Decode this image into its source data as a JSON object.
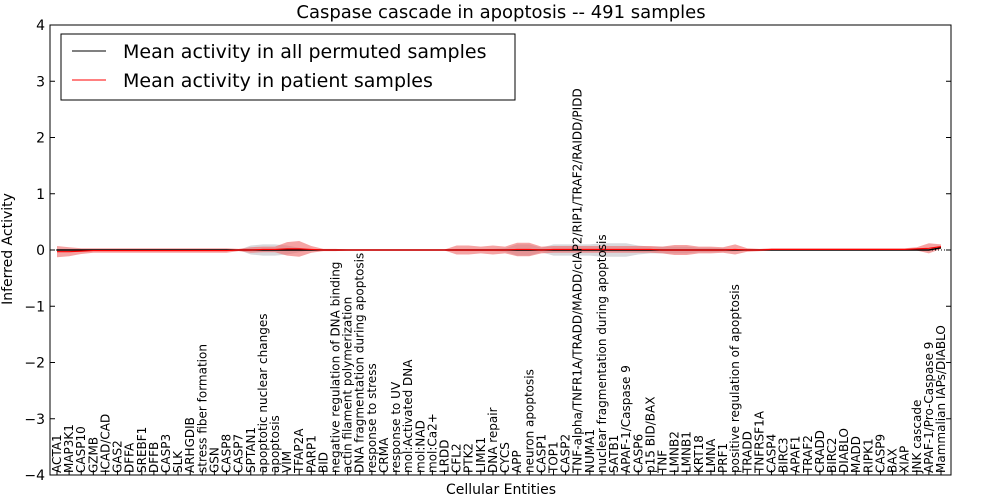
{
  "chart_data": {
    "type": "line",
    "title": "Caspase cascade in apoptosis -- 491 samples",
    "xlabel": "Cellular Entities",
    "ylabel": "Inferred Activity",
    "ylim": [
      -4,
      4
    ],
    "yticks": [
      -4,
      -3,
      -2,
      -1,
      0,
      1,
      2,
      3,
      4
    ],
    "ytick_labels": [
      "−4",
      "−3",
      "−2",
      "−1",
      "0",
      "1",
      "2",
      "3",
      "4"
    ],
    "legend_position": "top-left",
    "categories": [
      "ACTA1",
      "MAP3K1",
      "CASP10",
      "GZMB",
      "ICAD/CAD",
      "GAS2",
      "DFFA",
      "SREBF1",
      "DFFB",
      "CASP3",
      "SLK",
      "ARHGDIB",
      "stress fiber formation",
      "GSN",
      "CASP8",
      "CASP7",
      "SPTAN1",
      "apoptotic nuclear changes",
      "apoptosis",
      "VIM",
      "TFAP2A",
      "PARP1",
      "BID",
      "negative regulation of DNA binding",
      "actin filament polymerization",
      "DNA fragmentation during apoptosis",
      "response to stress",
      "CRMA",
      "response to UV",
      "mol:Activated DNA",
      "mol:NAD",
      "mol:Ca2+",
      "LRDD",
      "CFL2",
      "PTK2",
      "LIMK1",
      "DNA repair",
      "CYCS",
      "APP",
      "neuron apoptosis",
      "CASP1",
      "TOP1",
      "CASP2",
      "TNF-alpha/TNFR1A/TRADD/MADD/cIAP2/RIP1/TRAF2/RAIDD/PIDD",
      "NUMA1",
      "nuclear fragmentation during apoptosis",
      "SATB1",
      "APAF-1/Caspase 9",
      "CASP6",
      "p15 BID/BAX",
      "TNF",
      "LMNB2",
      "LMNB1",
      "KRT18",
      "LMNA",
      "PRF1",
      "positive regulation of apoptosis",
      "TRADD",
      "TNFRSF1A",
      "CASP4",
      "BIRC3",
      "APAF1",
      "TRAF2",
      "CRADD",
      "BIRC2",
      "DIABLO",
      "MADD",
      "RIPK1",
      "CASP9",
      "BAX",
      "XIAP",
      "JNK cascade",
      "APAF-1/Pro-Caspase 9",
      "Mammalian IAPs/DIABLO"
    ],
    "series": [
      {
        "name": "Mean activity in all permuted samples",
        "color": "#000000",
        "values": [
          0,
          0,
          0,
          0,
          0,
          0,
          0,
          0,
          0,
          0,
          0,
          0,
          0,
          0,
          0,
          0,
          0,
          0,
          0,
          0,
          0,
          0,
          0,
          0,
          0,
          0,
          0,
          0,
          0,
          0,
          0,
          0,
          0,
          0,
          0,
          0,
          0,
          0,
          0,
          0,
          0,
          0,
          0,
          0,
          0,
          0,
          0,
          0,
          0,
          0,
          0,
          0,
          0,
          0,
          0,
          0,
          0,
          0,
          0,
          0,
          0,
          0,
          0,
          0,
          0,
          0,
          0,
          0,
          0,
          0,
          0,
          0,
          0,
          0.04
        ],
        "band_halfwidth": [
          0,
          0,
          0,
          0,
          0,
          0,
          0,
          0,
          0,
          0,
          0,
          0,
          0,
          0,
          0,
          0,
          0.08,
          0.1,
          0.1,
          0.08,
          0.04,
          0,
          0,
          0,
          0,
          0,
          0,
          0,
          0,
          0,
          0,
          0,
          0,
          0.02,
          0.02,
          0.02,
          0.02,
          0.03,
          0.1,
          0.1,
          0.04,
          0.1,
          0.1,
          0.1,
          0.1,
          0.12,
          0.12,
          0.12,
          0.08,
          0.06,
          0.06,
          0.06,
          0.06,
          0.04,
          0.04,
          0.03,
          0.02,
          0,
          0,
          0,
          0,
          0,
          0,
          0,
          0,
          0,
          0,
          0,
          0,
          0,
          0,
          0,
          0,
          0
        ]
      },
      {
        "name": "Mean activity in patient samples",
        "color": "#ff0000",
        "band_color": "#ee6666",
        "values": [
          -0.03,
          -0.03,
          -0.02,
          -0.01,
          -0.01,
          -0.01,
          -0.01,
          -0.01,
          -0.01,
          -0.01,
          -0.01,
          -0.01,
          -0.01,
          -0.01,
          -0.01,
          0,
          0,
          0.01,
          0.01,
          0.02,
          0.02,
          0.01,
          0,
          0,
          0,
          0,
          0,
          0,
          0,
          0,
          0,
          0,
          0,
          0,
          0,
          0,
          0,
          0,
          0.01,
          0.01,
          0,
          0.01,
          0.01,
          0.01,
          0.01,
          0.01,
          0.01,
          0.01,
          0.01,
          0.01,
          0,
          0,
          0,
          0,
          0,
          0,
          0.01,
          0,
          0,
          0.01,
          0.01,
          0.01,
          0.01,
          0.01,
          0.01,
          0.01,
          0.01,
          0.01,
          0.01,
          0.01,
          0.01,
          0.02,
          0.03,
          0.06
        ],
        "band_halfwidth": [
          0.1,
          0.08,
          0.05,
          0.04,
          0.04,
          0.04,
          0.04,
          0.04,
          0.04,
          0.04,
          0.04,
          0.04,
          0.04,
          0.04,
          0.04,
          0.02,
          0.05,
          0.05,
          0.05,
          0.12,
          0.14,
          0.06,
          0.02,
          0.02,
          0.01,
          0.01,
          0.01,
          0.01,
          0.01,
          0.01,
          0.01,
          0.01,
          0.01,
          0.08,
          0.08,
          0.06,
          0.08,
          0.06,
          0.12,
          0.12,
          0.06,
          0.06,
          0.06,
          0.06,
          0.06,
          0.06,
          0.06,
          0.06,
          0.06,
          0.06,
          0.06,
          0.09,
          0.09,
          0.06,
          0.06,
          0.05,
          0.09,
          0.03,
          0.02,
          0.02,
          0.02,
          0.02,
          0.02,
          0.02,
          0.02,
          0.02,
          0.02,
          0.02,
          0.02,
          0.02,
          0.02,
          0.03,
          0.09,
          0.04
        ]
      }
    ]
  }
}
